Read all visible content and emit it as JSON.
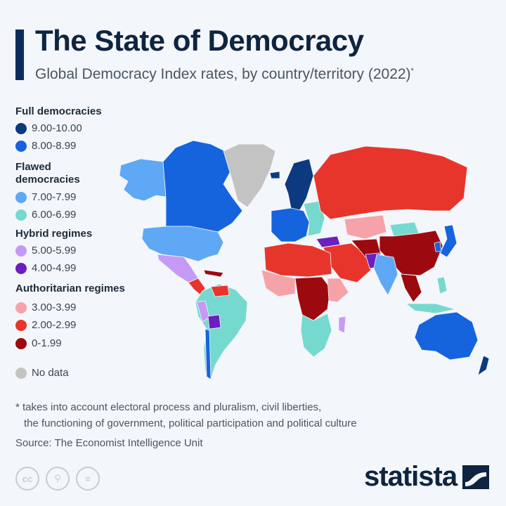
{
  "header": {
    "title": "The State of Democracy",
    "subtitle": "Global Democracy Index rates, by country/territory (2022)",
    "subtitle_mark": "*"
  },
  "legend": {
    "groups": [
      {
        "label": "Full democracies",
        "items": [
          {
            "label": "9.00-10.00",
            "color": "#0d3a7e"
          },
          {
            "label": "8.00-8.99",
            "color": "#1663de"
          }
        ]
      },
      {
        "label": "Flawed democracies",
        "items": [
          {
            "label": "7.00-7.99",
            "color": "#5ea8f5"
          },
          {
            "label": "6.00-6.99",
            "color": "#76d9cf"
          }
        ]
      },
      {
        "label": "Hybrid regimes",
        "items": [
          {
            "label": "5.00-5.99",
            "color": "#c59af5"
          },
          {
            "label": "4.00-4.99",
            "color": "#6c1ec0"
          }
        ]
      },
      {
        "label": "Authoritarian regimes",
        "items": [
          {
            "label": "3.00-3.99",
            "color": "#f5a3a8"
          },
          {
            "label": "2.00-2.99",
            "color": "#e8352c"
          },
          {
            "label": "0-1.99",
            "color": "#9c0a0f"
          }
        ]
      }
    ],
    "no_data": {
      "label": "No data",
      "color": "#c3c3c3"
    }
  },
  "footer": {
    "note_line1": "* takes into account electoral process and pluralism, civil liberties,",
    "note_line2": "the functioning of government, political participation and political culture",
    "source": "Source: The Economist Intelligence Unit",
    "license_icons": [
      "cc-icon",
      "by-icon",
      "nd-icon"
    ],
    "brand": "statista"
  }
}
